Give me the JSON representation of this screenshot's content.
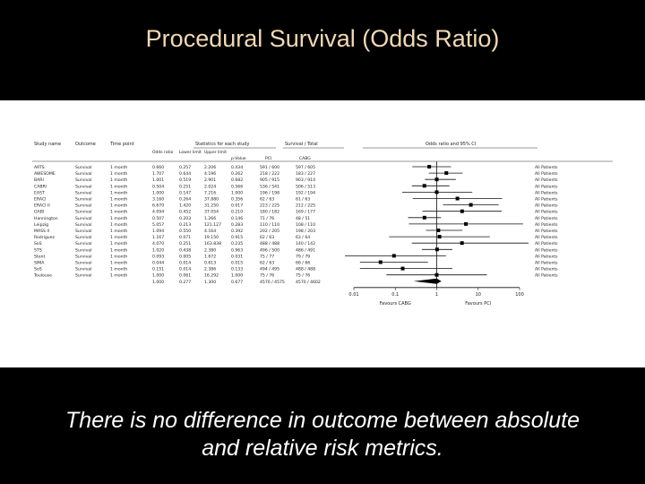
{
  "slide": {
    "title": "Procedural Survival (Odds Ratio)",
    "caption_line1": "There is no difference in outcome between absolute",
    "caption_line2": "and relative risk metrics."
  },
  "forest_plot": {
    "headers": {
      "study": "Study name",
      "outcome": "Outcome",
      "time": "Time point",
      "stats_group": "Statistics for each study",
      "events_group": "Survival / Total",
      "plot_group": "Odds ratio and 95% CI",
      "odds": "Odds ratio",
      "lower": "Lower limit",
      "upper": "Upper limit",
      "p": "p-Value",
      "pci": "PCI",
      "cabg": "CABG"
    },
    "rows": [
      {
        "study": "ARTS",
        "outcome": "Survival",
        "time": "1 month",
        "or": "0.660",
        "lower": "0.257",
        "upper": "2.206",
        "p": "0.434",
        "pci": "591 / 600",
        "cabg": "597 / 605",
        "group": "All Patients",
        "or_val": 0.66,
        "lo_val": 0.257,
        "hi_val": 2.206
      },
      {
        "study": "AWESOME",
        "outcome": "Survival",
        "time": "1 month",
        "or": "1.707",
        "lower": "0.644",
        "upper": "4.196",
        "p": "0.262",
        "pci": "218 / 222",
        "cabg": "183 / 227",
        "group": "All Patients",
        "or_val": 1.707,
        "lo_val": 0.644,
        "hi_val": 4.196
      },
      {
        "study": "BARI",
        "outcome": "Survival",
        "time": "1 month",
        "or": "1.001",
        "lower": "0.519",
        "upper": "2.901",
        "p": "0.682",
        "pci": "905 / 915",
        "cabg": "903 / 914",
        "group": "All Patients",
        "or_val": 1.001,
        "lo_val": 0.519,
        "hi_val": 2.901
      },
      {
        "study": "CABRI",
        "outcome": "Survival",
        "time": "1 month",
        "or": "0.504",
        "lower": "0.251",
        "upper": "2.024",
        "p": "0.566",
        "pci": "536 / 541",
        "cabg": "506 / 513",
        "group": "All Patients",
        "or_val": 0.504,
        "lo_val": 0.251,
        "hi_val": 2.024
      },
      {
        "study": "EAST",
        "outcome": "Survival",
        "time": "1 month",
        "or": "1.000",
        "lower": "0.147",
        "upper": "7.216",
        "p": "1.000",
        "pci": "196 / 198",
        "cabg": "192 / 194",
        "group": "All Patients",
        "or_val": 1.0,
        "lo_val": 0.147,
        "hi_val": 7.216
      },
      {
        "study": "ERACI",
        "outcome": "Survival",
        "time": "1 month",
        "or": "3.160",
        "lower": "0.264",
        "upper": "37.880",
        "p": "0.356",
        "pci": "62 / 63",
        "cabg": "61 / 63",
        "group": "All Patients",
        "or_val": 3.16,
        "lo_val": 0.264,
        "hi_val": 37.88
      },
      {
        "study": "ERACI II",
        "outcome": "Survival",
        "time": "1 month",
        "or": "6.670",
        "lower": "1.420",
        "upper": "31.250",
        "p": "0.017",
        "pci": "223 / 225",
        "cabg": "212 / 225",
        "group": "All Patients",
        "or_val": 6.67,
        "lo_val": 1.42,
        "hi_val": 31.25
      },
      {
        "study": "GABI",
        "outcome": "Survival",
        "time": "1 month",
        "or": "4.094",
        "lower": "0.452",
        "upper": "37.054",
        "p": "0.210",
        "pci": "180 / 182",
        "cabg": "169 / 177",
        "group": "All Patients",
        "or_val": 4.094,
        "lo_val": 0.452,
        "hi_val": 37.054
      },
      {
        "study": "Hannington",
        "outcome": "Survival",
        "time": "1 month",
        "or": "0.507",
        "lower": "0.203",
        "upper": "1.266",
        "p": "0.146",
        "pci": "71 / 76",
        "cabg": "48 / 51",
        "group": "All Patients",
        "or_val": 0.507,
        "lo_val": 0.203,
        "hi_val": 1.266
      },
      {
        "study": "Leipzig",
        "outcome": "Survival",
        "time": "1 month",
        "or": "5.057",
        "lower": "0.213",
        "upper": "121.127",
        "p": "0.283",
        "pci": "110 / 110",
        "cabg": "108 / 110",
        "group": "All Patients",
        "or_val": 5.057,
        "lo_val": 0.213,
        "hi_val": 121.127
      },
      {
        "study": "MASS II",
        "outcome": "Survival",
        "time": "1 month",
        "or": "1.094",
        "lower": "0.550",
        "upper": "4.164",
        "p": "0.392",
        "pci": "202 / 205",
        "cabg": "198 / 203",
        "group": "All Patients",
        "or_val": 1.094,
        "lo_val": 0.55,
        "hi_val": 4.164
      },
      {
        "study": "Rodriguez",
        "outcome": "Survival",
        "time": "1 month",
        "or": "1.167",
        "lower": "0.071",
        "upper": "19.150",
        "p": "0.915",
        "pci": "62 / 63",
        "cabg": "63 / 64",
        "group": "All Patients",
        "or_val": 1.167,
        "lo_val": 0.071,
        "hi_val": 19.15
      },
      {
        "study": "SoS",
        "outcome": "Survival",
        "time": "1 month",
        "or": "4.070",
        "lower": "0.251",
        "upper": "163.838",
        "p": "0.235",
        "pci": "488 / 488",
        "cabg": "140 / 142",
        "group": "All Patients",
        "or_val": 4.07,
        "lo_val": 0.251,
        "hi_val": 163.838
      },
      {
        "study": "STS",
        "outcome": "Survival",
        "time": "1 month",
        "or": "1.020",
        "lower": "0.438",
        "upper": "2.380",
        "p": "0.963",
        "pci": "496 / 500",
        "cabg": "486 / 491",
        "group": "All Patients",
        "or_val": 1.02,
        "lo_val": 0.438,
        "hi_val": 2.38
      },
      {
        "study": "Stent",
        "outcome": "Survival",
        "time": "1 month",
        "or": "0.093",
        "lower": "0.005",
        "upper": "1.672",
        "p": "0.031",
        "pci": "75 / 77",
        "cabg": "79 / 79",
        "group": "All Patients",
        "or_val": 0.093,
        "lo_val": 0.005,
        "hi_val": 1.672
      },
      {
        "study": "SIMA",
        "outcome": "Survival",
        "time": "1 month",
        "or": "0.044",
        "lower": "0.014",
        "upper": "0.613",
        "p": "0.015",
        "pci": "62 / 63",
        "cabg": "66 / 66",
        "group": "All Patients",
        "or_val": 0.044,
        "lo_val": 0.014,
        "hi_val": 0.613
      },
      {
        "study": "SoS",
        "outcome": "Survival",
        "time": "1 month",
        "or": "0.151",
        "lower": "0.014",
        "upper": "2.386",
        "p": "0.133",
        "pci": "494 / 495",
        "cabg": "488 / 488",
        "group": "All Patients",
        "or_val": 0.151,
        "lo_val": 0.014,
        "hi_val": 2.386
      },
      {
        "study": "Toulouse",
        "outcome": "Survival",
        "time": "1 month",
        "or": "1.000",
        "lower": "0.061",
        "upper": "16.292",
        "p": "1.000",
        "pci": "75 / 76",
        "cabg": "75 / 76",
        "group": "All Patients",
        "or_val": 1.0,
        "lo_val": 0.061,
        "hi_val": 16.292
      }
    ],
    "summary": {
      "or": "1.000",
      "lower": "0.277",
      "upper": "1.300",
      "p": "0.677",
      "pci": "4570 / 4575",
      "cabg": "4570 / 4602",
      "or_val": 1.0,
      "lo_val": 0.277,
      "hi_val": 1.3
    },
    "axis_ticks": [
      "0.01",
      "0.1",
      "1",
      "10",
      "100"
    ],
    "favours_left": "Favours CABG",
    "favours_right": "Favours PCI"
  }
}
